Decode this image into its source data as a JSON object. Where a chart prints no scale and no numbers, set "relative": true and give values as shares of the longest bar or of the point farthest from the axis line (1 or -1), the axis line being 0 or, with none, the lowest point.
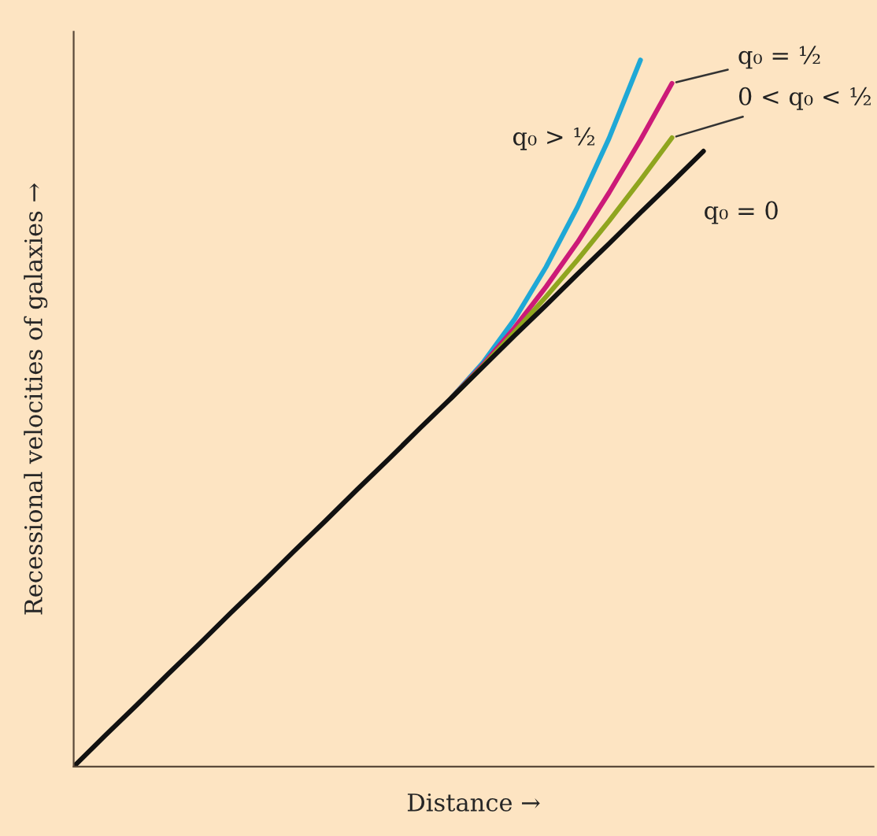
{
  "chart_data": {
    "type": "line",
    "relative": true,
    "xlabel": "Distance →",
    "ylabel": "Recessional velocities of galaxies →",
    "categories": [
      null,
      null,
      null,
      null,
      null,
      null,
      null,
      null,
      null,
      null,
      null,
      null,
      null,
      null,
      null,
      null,
      null,
      null,
      null,
      null,
      null
    ],
    "series": [
      {
        "name": "q₀ > ½",
        "color": "#1fa8d6",
        "values": [
          null,
          null,
          null,
          null,
          null,
          null,
          null,
          null,
          null,
          null,
          null,
          null,
          0.522,
          0.572,
          0.633,
          0.707,
          0.792,
          0.889,
          1.0,
          null,
          null
        ]
      },
      {
        "name": "q₀ = ½",
        "color": "#cc1a78",
        "values": [
          null,
          null,
          null,
          null,
          null,
          null,
          null,
          null,
          null,
          null,
          null,
          null,
          0.522,
          0.569,
          0.621,
          0.679,
          0.742,
          0.812,
          0.887,
          0.967,
          null
        ]
      },
      {
        "name": "0 < q₀ < ½",
        "color": "#8fa51f",
        "values": [
          null,
          null,
          null,
          null,
          null,
          null,
          null,
          null,
          null,
          null,
          null,
          null,
          0.522,
          0.567,
          0.615,
          0.665,
          0.717,
          0.772,
          0.83,
          0.89,
          null
        ]
      },
      {
        "name": "q₀ = 0",
        "color": "#111111",
        "values": [
          0,
          0.044,
          0.087,
          0.131,
          0.174,
          0.218,
          0.261,
          0.305,
          0.348,
          0.392,
          0.435,
          0.479,
          0.522,
          0.566,
          0.61,
          0.653,
          0.697,
          0.74,
          0.784,
          0.827,
          0.871
        ]
      }
    ],
    "legend": false
  }
}
